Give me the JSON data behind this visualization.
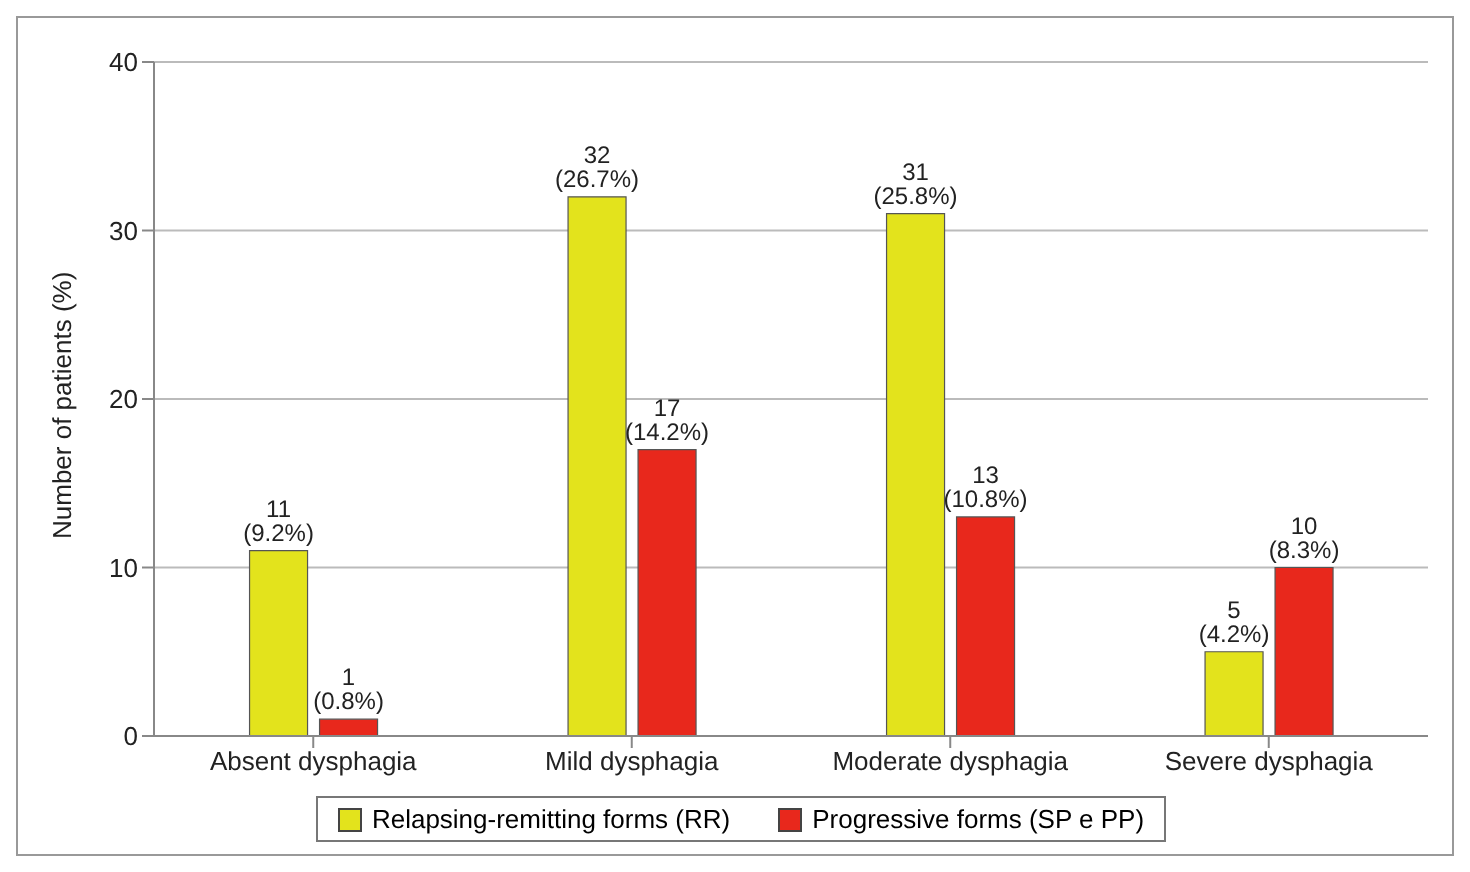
{
  "chart_data": {
    "type": "bar",
    "ylabel": "Number of patients (%)",
    "categories": [
      "Absent dysphagia",
      "Mild dysphagia",
      "Moderate dysphagia",
      "Severe dysphagia"
    ],
    "series": [
      {
        "name": "Relapsing-remitting forms (RR)",
        "color": "#e3e31c",
        "values": [
          11,
          32,
          31,
          5
        ],
        "value_labels": [
          "11 (9.2%)",
          "32 (26.7%)",
          "31 (25.8%)",
          "5 (4.2%)"
        ]
      },
      {
        "name": "Progressive forms (SP e PP)",
        "color": "#e8281c",
        "values": [
          1,
          17,
          13,
          10
        ],
        "value_labels": [
          "1 (0.8%)",
          "17 (14.2%)",
          "13 (10.8%)",
          "10 (8.3%)"
        ]
      }
    ],
    "ylim": [
      0,
      40
    ],
    "yticks": [
      0,
      10,
      20,
      30,
      40
    ],
    "grid": "y",
    "legend": "bottom"
  }
}
